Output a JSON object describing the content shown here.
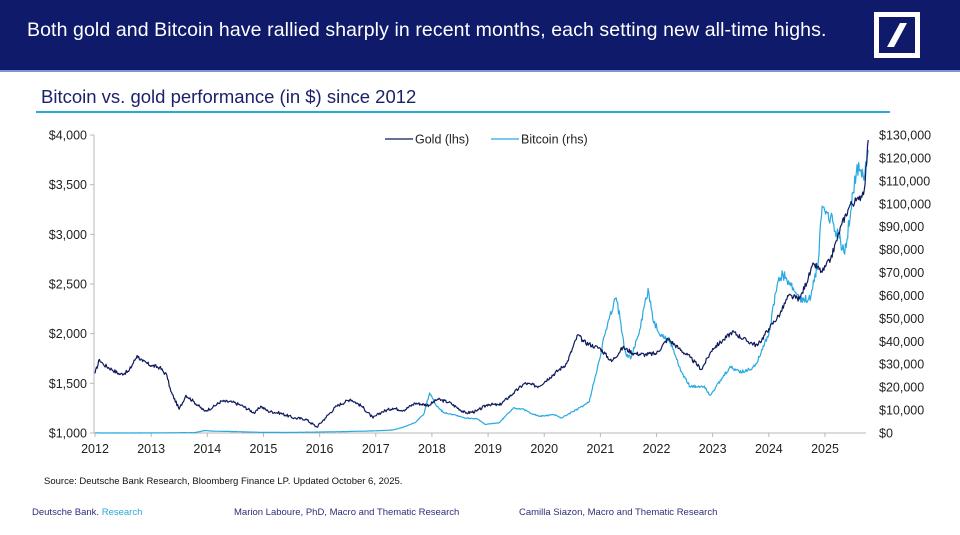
{
  "header": {
    "headline": "Both gold and Bitcoin have rallied sharply in recent months, each setting new all-time highs.",
    "logo_icon": "deutsche-bank-slash-logo"
  },
  "colors": {
    "header_bg": "#0f1a6b",
    "gold_line": "#0f1a5c",
    "bitcoin_line": "#29a9e0",
    "title_rule": "#29a9d8"
  },
  "footer": {
    "source": "Source: Deutsche Bank Research, Bloomberg Finance LP. Updated October 6, 2025.",
    "brand_name": "Deutsche Bank.",
    "brand_accent": "Research",
    "author_1": "Marion Laboure, PhD, Macro and Thematic Research",
    "author_2": "Camilla Siazon, Macro and Thematic Research"
  },
  "chart_data": {
    "type": "line",
    "title": "Bitcoin vs. gold performance (in $) since 2012",
    "xlabel": "",
    "ylabel_left": "",
    "ylabel_right": "",
    "xlim": [
      2012,
      2025.85
    ],
    "ylim_left": [
      1000,
      4000
    ],
    "ylim_right": [
      0,
      130000
    ],
    "x_ticks": [
      "2012",
      "2013",
      "2014",
      "2015",
      "2016",
      "2017",
      "2018",
      "2019",
      "2020",
      "2021",
      "2022",
      "2023",
      "2024",
      "2025"
    ],
    "y_ticks_left": [
      "$1,000",
      "$1,500",
      "$2,000",
      "$2,500",
      "$3,000",
      "$3,500",
      "$4,000"
    ],
    "y_ticks_left_values": [
      1000,
      1500,
      2000,
      2500,
      3000,
      3500,
      4000
    ],
    "y_ticks_right": [
      "$0",
      "$10,000",
      "$20,000",
      "$30,000",
      "$40,000",
      "$50,000",
      "$60,000",
      "$70,000",
      "$80,000",
      "$90,000",
      "$100,000",
      "$110,000",
      "$120,000",
      "$130,000"
    ],
    "y_ticks_right_values": [
      0,
      10000,
      20000,
      30000,
      40000,
      50000,
      60000,
      70000,
      80000,
      90000,
      100000,
      110000,
      120000,
      130000
    ],
    "grid": false,
    "legend_position": "top-center",
    "series": [
      {
        "name": "Gold (lhs)",
        "axis": "left",
        "x": [
          2012.0,
          2012.08,
          2012.15,
          2012.3,
          2012.45,
          2012.6,
          2012.75,
          2012.85,
          2013.0,
          2013.15,
          2013.28,
          2013.35,
          2013.5,
          2013.62,
          2013.75,
          2013.95,
          2014.1,
          2014.25,
          2014.45,
          2014.6,
          2014.85,
          2014.95,
          2015.08,
          2015.3,
          2015.55,
          2015.75,
          2015.95,
          2016.1,
          2016.3,
          2016.55,
          2016.75,
          2016.95,
          2017.1,
          2017.3,
          2017.5,
          2017.7,
          2017.95,
          2018.1,
          2018.3,
          2018.6,
          2018.8,
          2019.0,
          2019.2,
          2019.45,
          2019.65,
          2019.9,
          2020.1,
          2020.25,
          2020.4,
          2020.6,
          2020.7,
          2020.9,
          2021.0,
          2021.2,
          2021.4,
          2021.6,
          2021.8,
          2022.0,
          2022.2,
          2022.4,
          2022.6,
          2022.8,
          2023.0,
          2023.2,
          2023.35,
          2023.6,
          2023.8,
          2024.0,
          2024.2,
          2024.35,
          2024.55,
          2024.8,
          2024.95,
          2025.1,
          2025.3,
          2025.45,
          2025.6,
          2025.7,
          2025.77
        ],
        "values": [
          1600,
          1740,
          1690,
          1640,
          1590,
          1620,
          1780,
          1720,
          1680,
          1660,
          1580,
          1420,
          1240,
          1380,
          1320,
          1220,
          1260,
          1320,
          1310,
          1280,
          1200,
          1270,
          1220,
          1200,
          1150,
          1140,
          1060,
          1150,
          1270,
          1340,
          1270,
          1150,
          1210,
          1250,
          1230,
          1300,
          1280,
          1340,
          1310,
          1200,
          1220,
          1290,
          1280,
          1400,
          1500,
          1470,
          1560,
          1630,
          1700,
          1990,
          1920,
          1870,
          1850,
          1720,
          1860,
          1800,
          1790,
          1800,
          1950,
          1850,
          1760,
          1640,
          1850,
          1940,
          2020,
          1930,
          1880,
          2050,
          2200,
          2380,
          2350,
          2700,
          2620,
          2750,
          3100,
          3300,
          3350,
          3450,
          3950
        ]
      },
      {
        "name": "Bitcoin (rhs)",
        "axis": "right",
        "x": [
          2012.0,
          2013.0,
          2013.8,
          2013.95,
          2014.1,
          2014.5,
          2015.0,
          2015.5,
          2016.0,
          2016.5,
          2017.0,
          2017.3,
          2017.5,
          2017.7,
          2017.85,
          2017.96,
          2018.05,
          2018.2,
          2018.4,
          2018.6,
          2018.8,
          2018.95,
          2019.2,
          2019.45,
          2019.6,
          2019.9,
          2020.2,
          2020.3,
          2020.6,
          2020.8,
          2020.95,
          2021.1,
          2021.28,
          2021.35,
          2021.45,
          2021.55,
          2021.7,
          2021.85,
          2021.95,
          2022.1,
          2022.25,
          2022.4,
          2022.6,
          2022.85,
          2022.95,
          2023.15,
          2023.3,
          2023.55,
          2023.75,
          2023.9,
          2024.0,
          2024.15,
          2024.25,
          2024.45,
          2024.6,
          2024.75,
          2024.88,
          2024.95,
          2025.1,
          2025.25,
          2025.35,
          2025.5,
          2025.6,
          2025.68,
          2025.77
        ],
        "values": [
          10,
          15,
          200,
          1100,
          800,
          600,
          250,
          250,
          420,
          650,
          950,
          1300,
          2600,
          4500,
          8000,
          17500,
          13000,
          9000,
          8000,
          6500,
          6300,
          3700,
          4500,
          11000,
          10500,
          7300,
          8000,
          6500,
          10500,
          13500,
          29000,
          45000,
          59000,
          50000,
          35000,
          33000,
          45000,
          63000,
          48000,
          42000,
          40000,
          29000,
          20000,
          20500,
          16500,
          23000,
          28500,
          26500,
          29000,
          38000,
          43000,
          65000,
          69000,
          62000,
          57000,
          60000,
          75000,
          99000,
          94000,
          85000,
          78000,
          105000,
          118000,
          112000,
          123500
        ]
      }
    ]
  }
}
